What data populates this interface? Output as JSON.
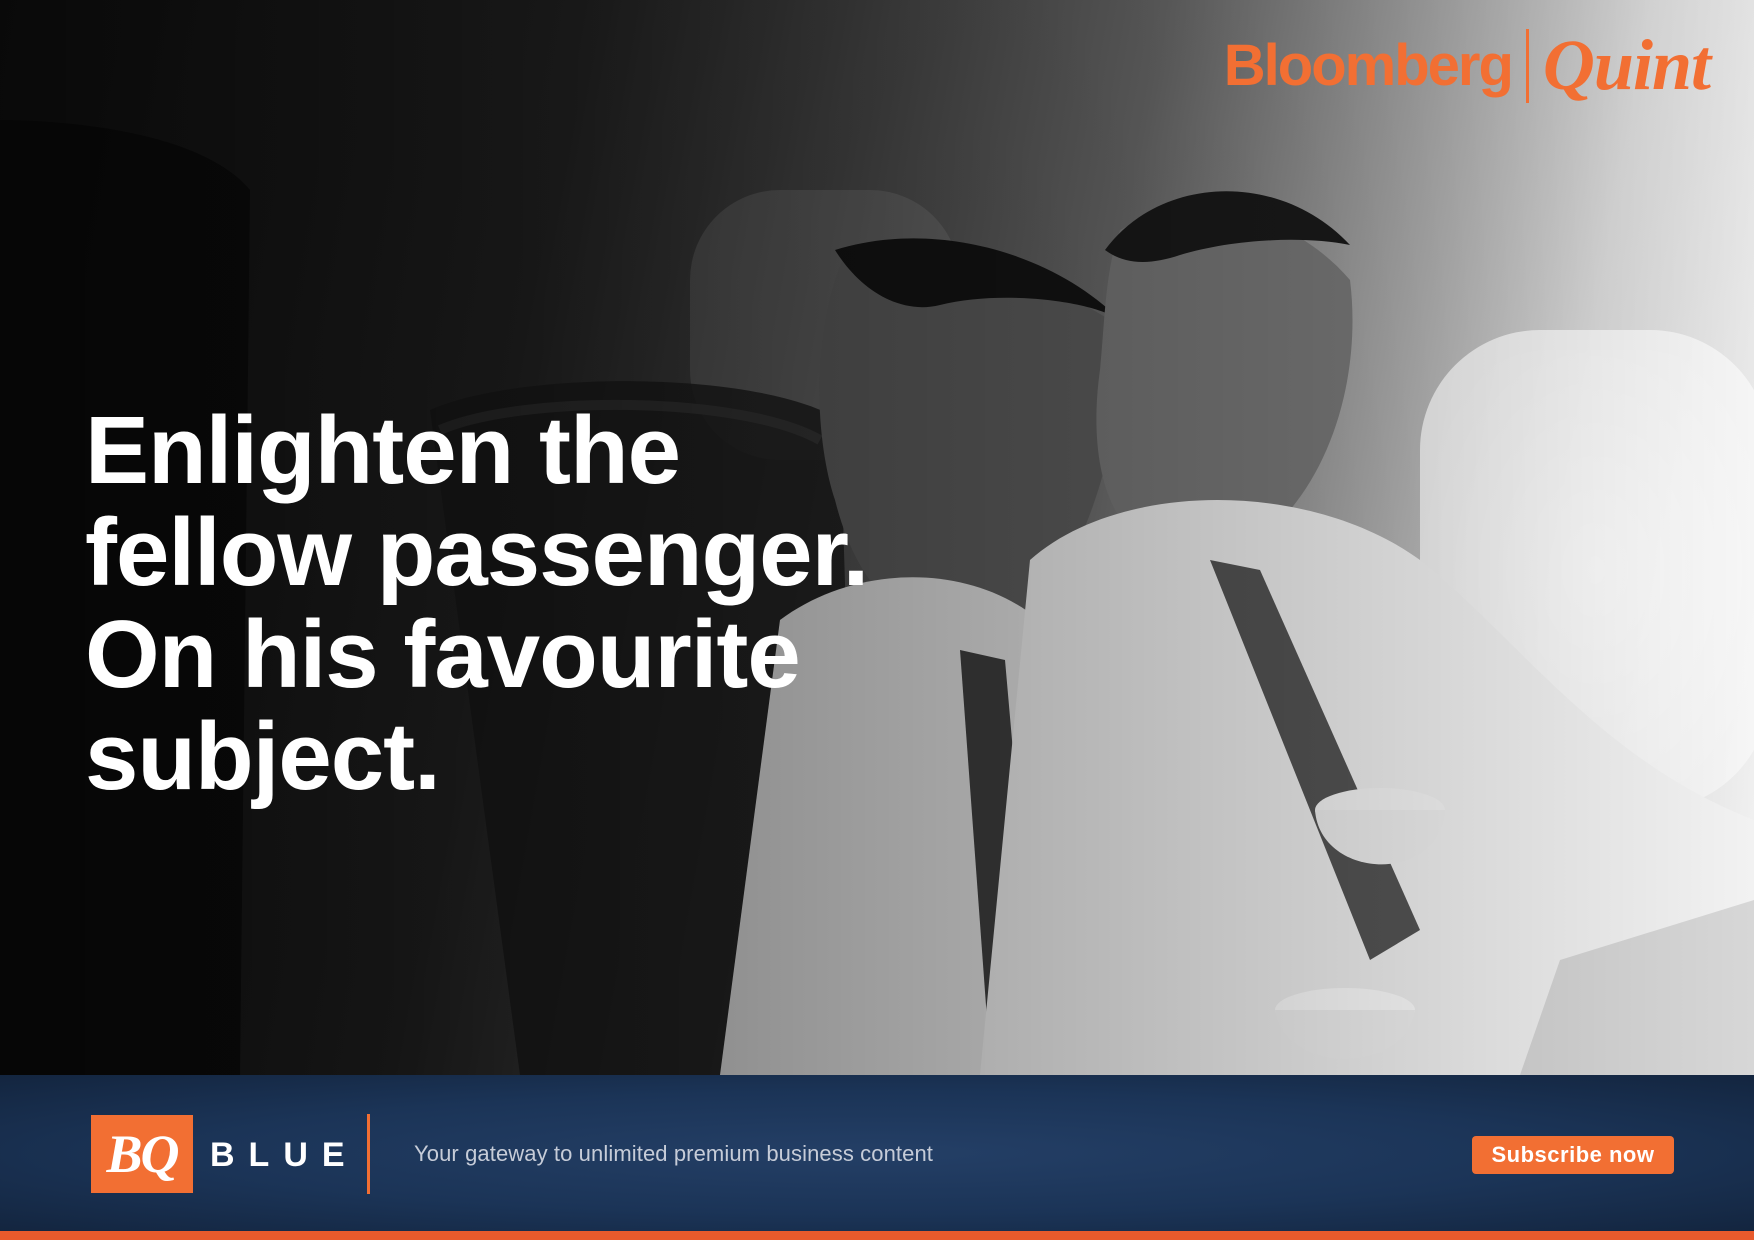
{
  "brand": {
    "bloomberg": "Bloomberg",
    "quint": "Quint",
    "color": "#f26f33"
  },
  "hero": {
    "lines": [
      "Enlighten the",
      "fellow passenger.",
      "On his favourite",
      "subject."
    ],
    "image": "two-businessmen-on-airplane-grayscale-photo"
  },
  "footer": {
    "badge": "BQ",
    "badge_word": "BLUE",
    "tagline": "Your gateway to unlimited premium business content",
    "cta_label": "Subscribe now",
    "bar_color": "#1b3457",
    "accent_color": "#f26f33"
  }
}
